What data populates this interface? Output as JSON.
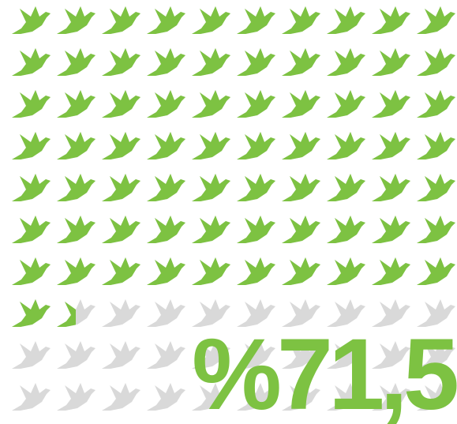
{
  "chart_data": {
    "type": "pictogram",
    "values": [
      71.5
    ],
    "value_labels": [
      "%71,5"
    ],
    "color": "#7dc242",
    "empty_color": "#d9d9d9"
  }
}
